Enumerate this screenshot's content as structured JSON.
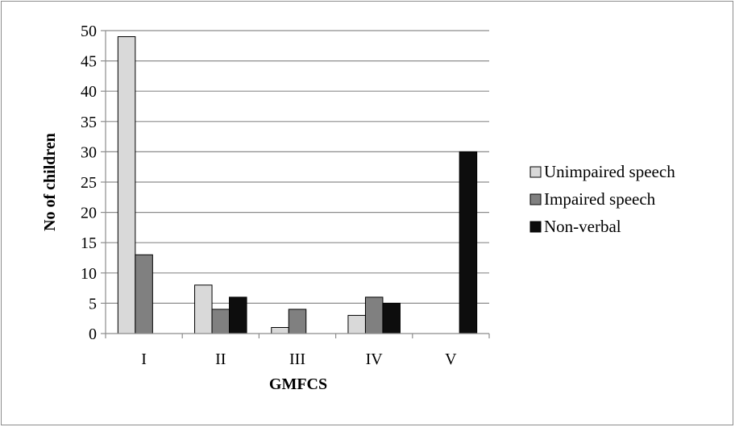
{
  "chart_data": {
    "type": "bar",
    "title": "",
    "xlabel": "GMFCS",
    "ylabel": "No of children",
    "categories": [
      "I",
      "II",
      "III",
      "IV",
      "V"
    ],
    "ylim": [
      0,
      50
    ],
    "yticks": [
      0,
      5,
      10,
      15,
      20,
      25,
      30,
      35,
      40,
      45,
      50
    ],
    "grid": true,
    "legend_position": "right",
    "series": [
      {
        "name": "Unimpaired speech",
        "color": "#d9d9d9",
        "values": [
          49,
          8,
          1,
          3,
          0
        ]
      },
      {
        "name": "Impaired speech",
        "color": "#808080",
        "values": [
          13,
          4,
          4,
          6,
          0
        ]
      },
      {
        "name": "Non-verbal",
        "color": "#0d0d0d",
        "values": [
          0,
          6,
          0,
          5,
          30
        ]
      }
    ]
  }
}
